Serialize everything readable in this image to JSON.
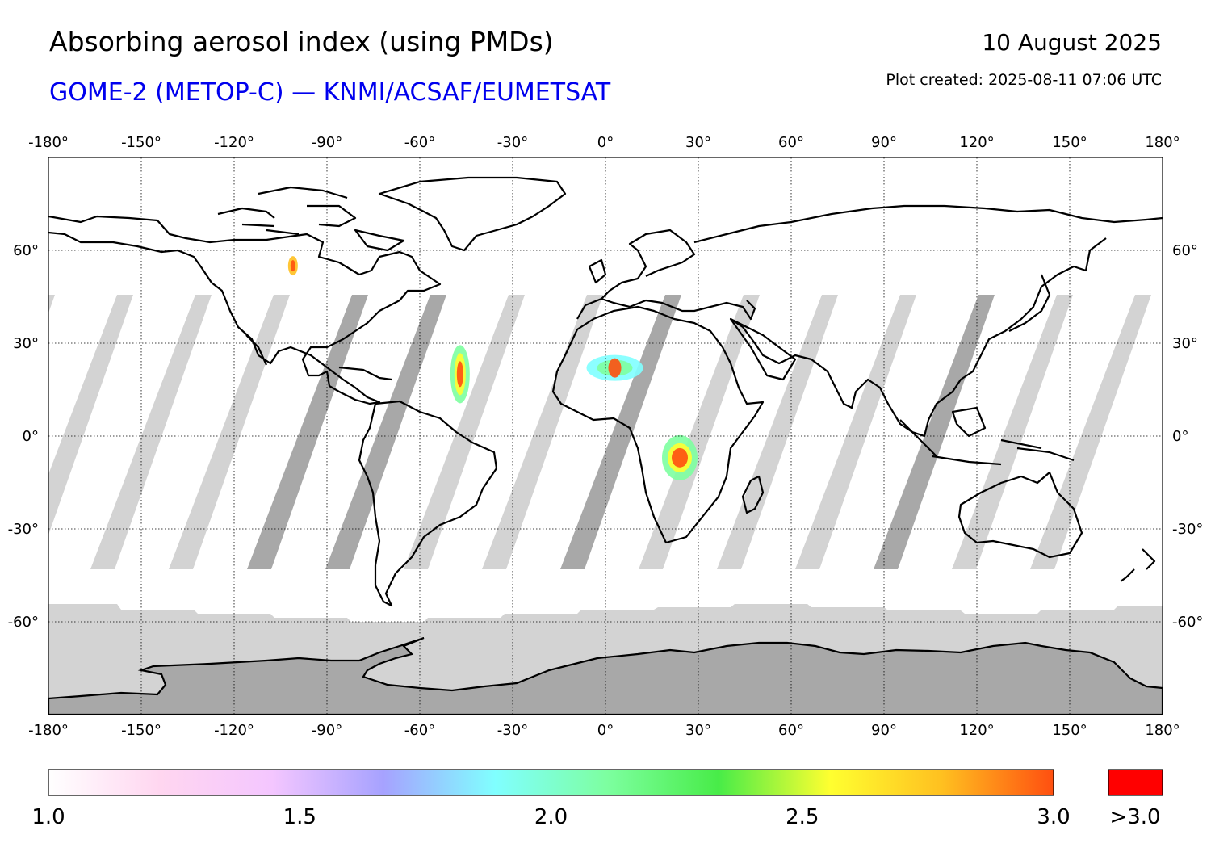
{
  "header": {
    "title": "Absorbing aerosol index (using PMDs)",
    "subtitle": "GOME-2 (METOP-C) — KNMI/ACSAF/EUMETSAT",
    "date": "10 August 2025",
    "created": "Plot created: 2025-08-11 07:06 UTC"
  },
  "map": {
    "lon_ticks": [
      "-180°",
      "-150°",
      "-120°",
      "-90°",
      "-60°",
      "-30°",
      "0°",
      "30°",
      "60°",
      "90°",
      "120°",
      "150°",
      "180°"
    ],
    "lat_ticks": [
      "60°",
      "30°",
      "0°",
      "-30°",
      "-60°"
    ],
    "lon_range": [
      -180,
      180
    ],
    "lat_range": [
      -90,
      90
    ],
    "grid": "dotted",
    "colors": {
      "land_outline": "#000000",
      "no_data": "#d3d3d3",
      "gap": "#a8a8a8"
    },
    "aerosol_hotspots": [
      {
        "name": "Central Africa",
        "lon": 24,
        "lat": -7,
        "max_index": ">3.0"
      },
      {
        "name": "Sahara",
        "lon": 3,
        "lat": 22,
        "max_index": ">3.0"
      },
      {
        "name": "Atlantic plume",
        "lon": -47,
        "lat": 20,
        "max_index": ">3.0"
      },
      {
        "name": "Canada",
        "lon": -101,
        "lat": 55,
        "max_index": ">3.0"
      }
    ]
  },
  "colorbar": {
    "ticks": [
      "1.0",
      "1.5",
      "2.0",
      "2.5",
      "3.0"
    ],
    "min": 1.0,
    "max": 3.0,
    "over_label": ">3.0",
    "over_color": "#ff0000",
    "stops": [
      "#ffffff",
      "#ffd6f0",
      "#f4c6ff",
      "#a6a2ff",
      "#80ffff",
      "#7dffa0",
      "#48ec48",
      "#ffff30",
      "#ffc020",
      "#ff4f10"
    ]
  }
}
